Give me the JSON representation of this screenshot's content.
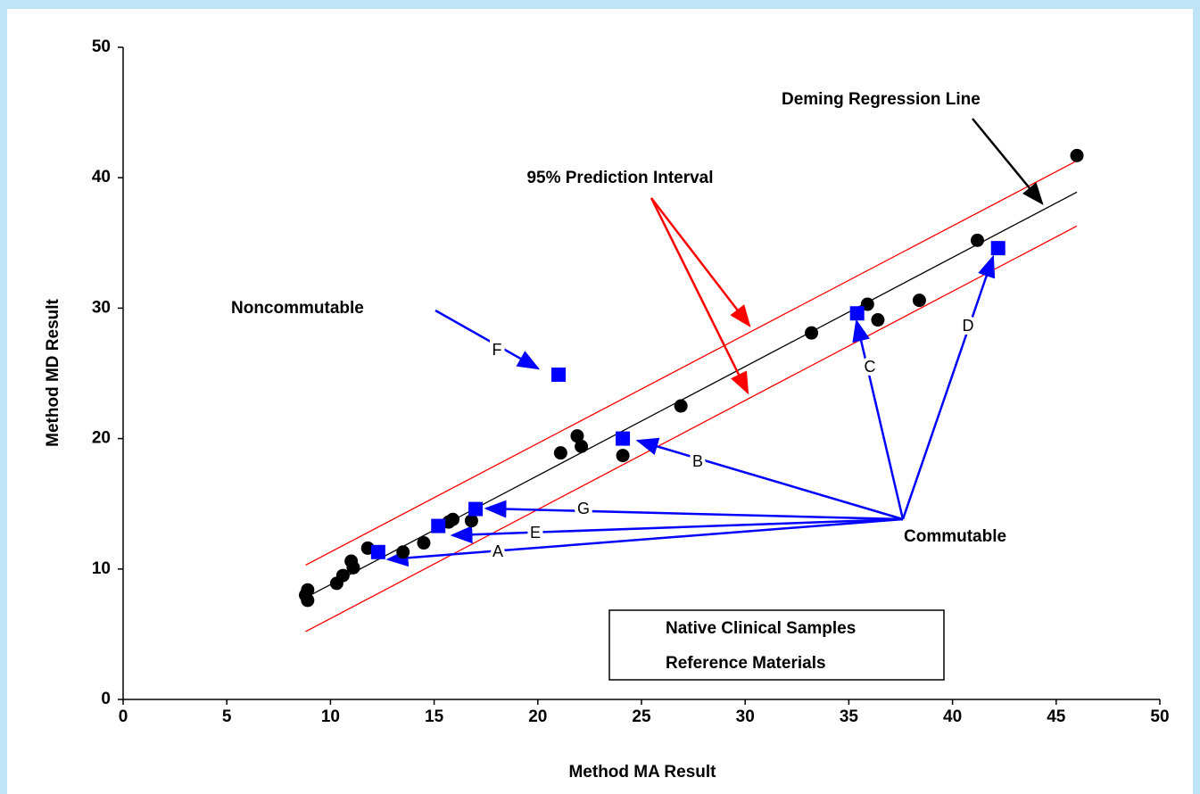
{
  "chart_data": {
    "type": "scatter",
    "xlabel": "Method MA Result",
    "ylabel": "Method MD Result",
    "xlim": [
      0,
      50
    ],
    "ylim": [
      0,
      50
    ],
    "xticks": [
      0,
      5,
      10,
      15,
      20,
      25,
      30,
      35,
      40,
      45,
      50
    ],
    "yticks": [
      0,
      10,
      20,
      30,
      40,
      50
    ],
    "series": [
      {
        "name": "Native Clinical Samples",
        "color": "#000000",
        "marker": "circle",
        "x": [
          8.8,
          8.9,
          8.9,
          10.3,
          10.6,
          11.0,
          11.1,
          11.8,
          13.5,
          14.5,
          15.7,
          15.9,
          16.8,
          21.1,
          21.9,
          22.1,
          24.1,
          26.9,
          33.2,
          35.9,
          36.4,
          38.4,
          41.2,
          46.0
        ],
        "values": [
          8.0,
          8.4,
          7.6,
          8.9,
          9.5,
          10.6,
          10.1,
          11.6,
          11.3,
          12.0,
          13.6,
          13.8,
          13.7,
          18.9,
          20.2,
          19.4,
          18.7,
          22.5,
          28.1,
          30.3,
          29.1,
          30.6,
          35.2,
          41.7
        ]
      },
      {
        "name": "Reference Materials",
        "color": "#0000ff",
        "marker": "square",
        "x": [
          12.3,
          15.2,
          17.0,
          24.1,
          21.0,
          35.4,
          42.2
        ],
        "values": [
          11.3,
          13.3,
          14.6,
          20.0,
          24.9,
          29.6,
          34.6
        ],
        "point_labels": [
          "A",
          "E",
          "G",
          "B",
          "F",
          "C",
          "D"
        ]
      }
    ],
    "lines": [
      {
        "color": "#000000",
        "x": [
          8.8,
          46.0
        ],
        "values": [
          7.8,
          38.9
        ]
      },
      {
        "color": "#ff0000",
        "x": [
          8.8,
          46.0
        ],
        "values": [
          10.3,
          41.3
        ]
      },
      {
        "color": "#ff0000",
        "x": [
          8.8,
          46.0
        ],
        "values": [
          5.2,
          36.3
        ]
      }
    ],
    "annotations": [
      "Deming Regression Line",
      "95% Prediction Interval",
      "Noncommutable",
      "Commutable"
    ]
  }
}
